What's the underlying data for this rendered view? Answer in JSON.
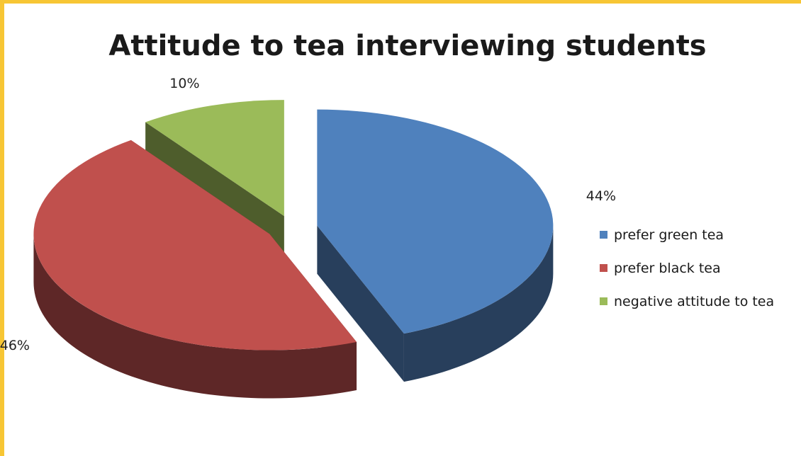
{
  "colors": {
    "page_border": "#f7c634",
    "background": "#ffffff",
    "series_top": [
      "#4f81bd",
      "#c0504d",
      "#9bbb59"
    ],
    "series_side": [
      "#283f5c",
      "#5e2727",
      "#4e5d2c"
    ]
  },
  "chart_data": {
    "type": "pie",
    "variant": "3d-exploded",
    "title": "Attitude to tea interviewing students",
    "categories": [
      "prefer green tea",
      "prefer black tea",
      "negative attitude to tea"
    ],
    "values": [
      44,
      46,
      10
    ],
    "data_labels": [
      "44%",
      "46%",
      "10%"
    ],
    "legend_position": "right"
  }
}
